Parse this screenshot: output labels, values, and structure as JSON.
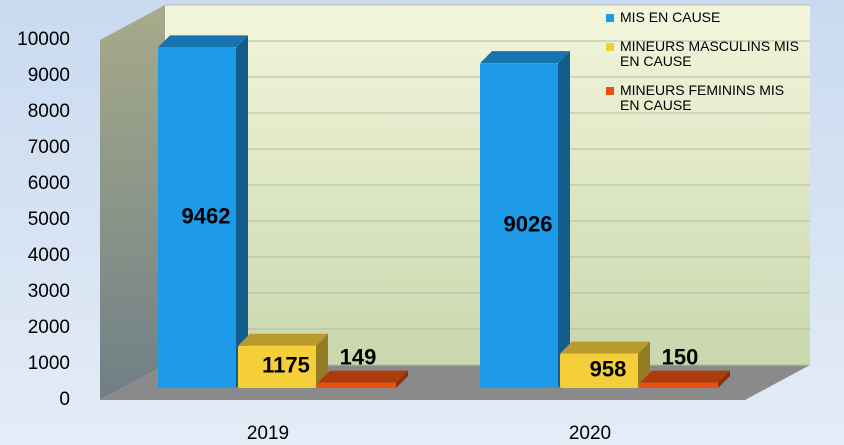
{
  "chart_data": {
    "type": "bar3d",
    "categories": [
      "2019",
      "2020"
    ],
    "series": [
      {
        "name": "MIS EN CAUSE",
        "color": "#1e9be8",
        "values": [
          9462,
          9026
        ]
      },
      {
        "name": "MINEURS MASCULINS MIS EN CAUSE",
        "color": "#f5cf3a",
        "values": [
          1175,
          958
        ]
      },
      {
        "name": "MINEURS FEMININS MIS EN CAUSE",
        "color": "#e8500f",
        "values": [
          149,
          150
        ]
      }
    ],
    "ylim": [
      0,
      10000
    ],
    "yticks": [
      0,
      1000,
      2000,
      3000,
      4000,
      5000,
      6000,
      7000,
      8000,
      9000,
      10000
    ],
    "grid": true,
    "legend": "top-right"
  }
}
